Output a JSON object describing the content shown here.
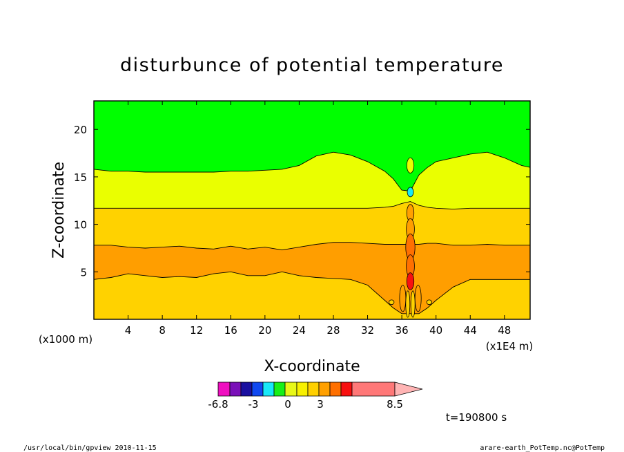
{
  "chart_data": {
    "type": "contour",
    "title": "disturbunce of potential temperature",
    "xlabel": "X-coordinate",
    "ylabel": "Z-coordinate",
    "x_unit_left": "(x1000 m)",
    "x_unit_right": "(x1E4 m)",
    "x_ticks": [
      4,
      8,
      12,
      16,
      20,
      24,
      28,
      32,
      36,
      40,
      44,
      48
    ],
    "y_ticks": [
      5,
      10,
      15,
      20
    ],
    "xlim": [
      0,
      51
    ],
    "ylim": [
      0,
      23
    ],
    "boundaries": {
      "comment_free": true,
      "x": [
        0,
        2,
        4,
        6,
        8,
        10,
        12,
        14,
        16,
        18,
        20,
        22,
        24,
        26,
        28,
        30,
        32,
        34,
        35,
        36,
        37,
        38,
        39,
        40,
        42,
        44,
        46,
        48,
        50,
        51
      ],
      "b_0_3": [
        4.2,
        4.4,
        4.8,
        4.6,
        4.4,
        4.5,
        4.4,
        4.8,
        5.0,
        4.6,
        4.6,
        5.0,
        4.6,
        4.4,
        4.3,
        4.2,
        3.6,
        2.0,
        1.2,
        0.6,
        0.6,
        0.6,
        1.2,
        2.0,
        3.4,
        4.2,
        4.2,
        4.2,
        4.2,
        4.2
      ],
      "b_3_4": [
        7.8,
        7.8,
        7.6,
        7.5,
        7.6,
        7.7,
        7.5,
        7.4,
        7.7,
        7.4,
        7.6,
        7.3,
        7.6,
        7.9,
        8.1,
        8.1,
        8.0,
        7.9,
        7.9,
        7.9,
        7.9,
        7.9,
        8.0,
        8.0,
        7.8,
        7.8,
        7.9,
        7.8,
        7.8,
        7.8
      ],
      "b_1_3": [
        11.7,
        11.7,
        11.7,
        11.7,
        11.7,
        11.7,
        11.7,
        11.7,
        11.7,
        11.7,
        11.7,
        11.7,
        11.7,
        11.7,
        11.7,
        11.7,
        11.7,
        11.8,
        11.9,
        12.2,
        12.4,
        12.0,
        11.8,
        11.7,
        11.6,
        11.7,
        11.7,
        11.7,
        11.7,
        11.7
      ],
      "b_0_1": [
        15.8,
        15.6,
        15.6,
        15.5,
        15.5,
        15.5,
        15.5,
        15.5,
        15.6,
        15.6,
        15.7,
        15.8,
        16.2,
        17.2,
        17.6,
        17.3,
        16.6,
        15.6,
        14.8,
        13.6,
        13.5,
        15.2,
        16.0,
        16.6,
        17.0,
        17.4,
        17.6,
        17.0,
        16.2,
        16.0
      ]
    },
    "colorbar": {
      "labels": [
        "-6.8",
        "-3",
        "0",
        "3",
        "8.5"
      ],
      "colors": [
        "#f00fc0",
        "#7a10b8",
        "#1a10a0",
        "#1048f0",
        "#18e8f8",
        "#18f018",
        "#e8f818",
        "#f8f000",
        "#ffd000",
        "#ffa000",
        "#ff7000",
        "#f81010",
        "#ff7878",
        "#ffb4b4"
      ]
    },
    "colors": {
      "green": "#00ff00",
      "yellow_green": "#eaff00",
      "gold": "#ffd200",
      "orange": "#ff9e00"
    },
    "time_label": "t=190800 s"
  },
  "footer": {
    "left": "/usr/local/bin/gpview   2010-11-15",
    "right": "arare-earth_PotTemp.nc@PotTemp"
  }
}
